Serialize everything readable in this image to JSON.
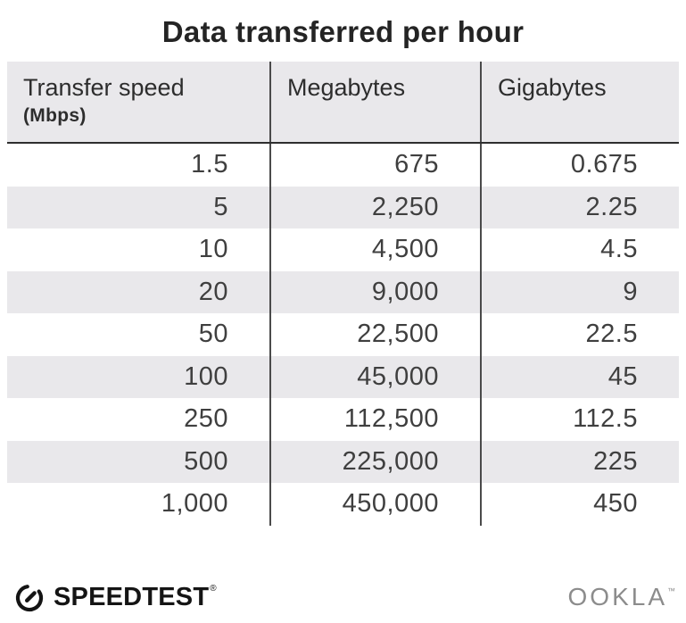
{
  "title": "Data transferred per hour",
  "table": {
    "headers": [
      {
        "label": "Transfer speed",
        "sub": "(Mbps)"
      },
      {
        "label": "Megabytes"
      },
      {
        "label": "Gigabytes"
      }
    ],
    "rows": [
      [
        "1.5",
        "675",
        "0.675"
      ],
      [
        "5",
        "2,250",
        "2.25"
      ],
      [
        "10",
        "4,500",
        "4.5"
      ],
      [
        "20",
        "9,000",
        "9"
      ],
      [
        "50",
        "22,500",
        "22.5"
      ],
      [
        "100",
        "45,000",
        "45"
      ],
      [
        "250",
        "112,500",
        "112.5"
      ],
      [
        "500",
        "225,000",
        "225"
      ],
      [
        "1,000",
        "450,000",
        "450"
      ]
    ]
  },
  "footer": {
    "speedtest_label": "SPEEDTEST",
    "speedtest_mark": "®",
    "ookla_label": "OOKLA",
    "ookla_mark": "™"
  },
  "colors": {
    "band_gray": "#e9e8eb",
    "divider": "#4a4a4a",
    "header_rule": "#2e2e2e",
    "title_text": "#242424",
    "number_text": "#3f3f3f",
    "speedtest_black": "#141414",
    "ookla_gray": "#8c8c8c"
  },
  "chart_data": {
    "type": "table",
    "title": "Data transferred per hour",
    "columns": [
      "Transfer speed (Mbps)",
      "Megabytes",
      "Gigabytes"
    ],
    "rows": [
      [
        1.5,
        675,
        0.675
      ],
      [
        5,
        2250,
        2.25
      ],
      [
        10,
        4500,
        4.5
      ],
      [
        20,
        9000,
        9
      ],
      [
        50,
        22500,
        22.5
      ],
      [
        100,
        45000,
        45
      ],
      [
        250,
        112500,
        112.5
      ],
      [
        500,
        225000,
        225
      ],
      [
        1000,
        450000,
        450
      ]
    ]
  }
}
